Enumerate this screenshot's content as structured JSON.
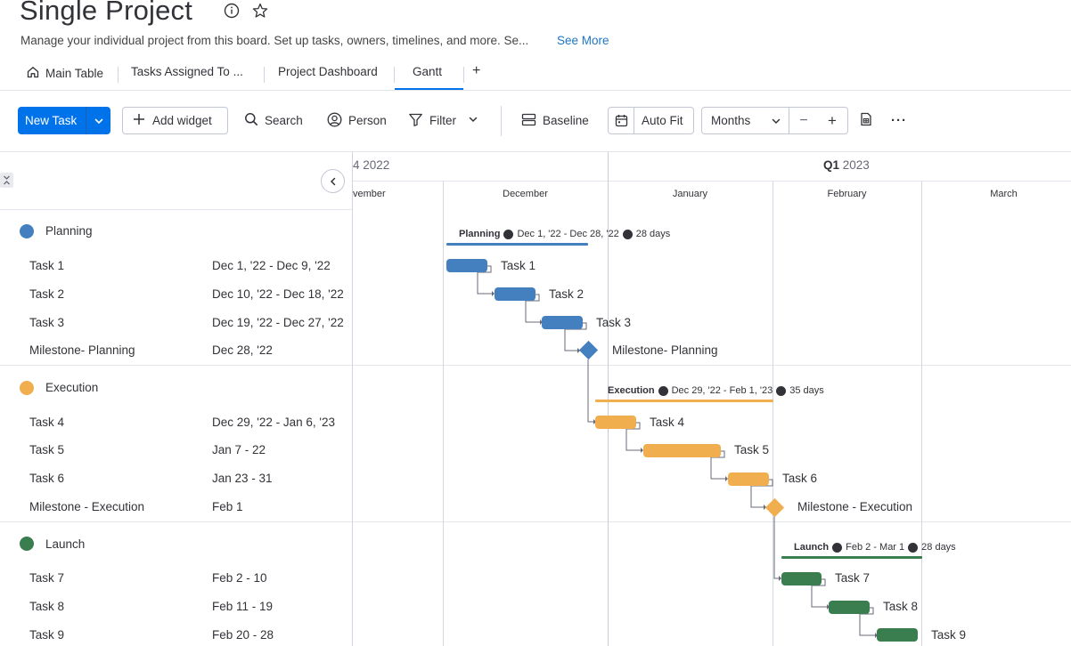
{
  "header": {
    "title": "Single Project",
    "description": "Manage your individual project from this board. Set up tasks, owners, timelines, and more. Se...",
    "see_more": "See More"
  },
  "tabs": [
    {
      "label": "Main Table",
      "icon": "home-icon"
    },
    {
      "label": "Tasks Assigned To ..."
    },
    {
      "label": "Project Dashboard"
    },
    {
      "label": "Gantt",
      "active": true
    },
    {
      "label": "+"
    }
  ],
  "toolbar": {
    "new_task": "New Task",
    "add_widget": "Add widget",
    "search": "Search",
    "person": "Person",
    "filter": "Filter",
    "baseline": "Baseline",
    "auto_fit": "Auto Fit",
    "zoom": "Months",
    "zoom_out": "−",
    "zoom_in": "+",
    "more": "···"
  },
  "timeline": {
    "quarters": [
      "4 2022",
      "2023"
    ],
    "quarter_prefix": "Q1",
    "months": [
      "vember",
      "December",
      "January",
      "February",
      "March"
    ]
  },
  "groups": [
    {
      "name": "Planning",
      "color": "#4480bf",
      "summary": {
        "name": "Planning",
        "dates": "Dec 1, '22 - Dec 28, '22",
        "duration": "28 days"
      },
      "tasks": [
        {
          "name": "Task 1",
          "dates": "Dec 1, '22 - Dec 9, '22"
        },
        {
          "name": "Task 2",
          "dates": "Dec 10, '22 - Dec 18, '22"
        },
        {
          "name": "Task 3",
          "dates": "Dec 19, '22 - Dec 27, '22"
        },
        {
          "name": "Milestone- Planning",
          "dates": "Dec 28, '22",
          "milestone": true
        }
      ]
    },
    {
      "name": "Execution",
      "color": "#f0ae4e",
      "summary": {
        "name": "Execution",
        "dates": "Dec 29, '22 - Feb 1, '23",
        "duration": "35 days"
      },
      "tasks": [
        {
          "name": "Task 4",
          "dates": "Dec 29, '22 - Jan 6, '23"
        },
        {
          "name": "Task 5",
          "dates": "Jan 7 - 22"
        },
        {
          "name": "Task 6",
          "dates": "Jan 23 - 31"
        },
        {
          "name": "Milestone - Execution",
          "dates": "Feb 1",
          "milestone": true
        }
      ]
    },
    {
      "name": "Launch",
      "color": "#3a7d4f",
      "summary": {
        "name": "Launch",
        "dates": "Feb 2 - Mar 1",
        "duration": "28 days"
      },
      "tasks": [
        {
          "name": "Task 7",
          "dates": "Feb 2 - 10"
        },
        {
          "name": "Task 8",
          "dates": "Feb 11 - 19"
        },
        {
          "name": "Task 9",
          "dates": "Feb 20 - 28"
        }
      ]
    }
  ]
}
